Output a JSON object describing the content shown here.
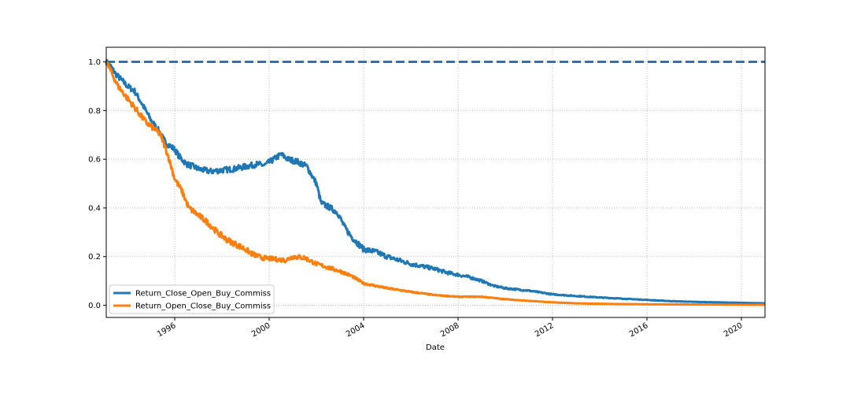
{
  "chart_data": {
    "type": "line",
    "title": "",
    "xlabel": "Date",
    "ylabel": "",
    "xlim": [
      1993.1,
      2021.0
    ],
    "ylim": [
      -0.05,
      1.06
    ],
    "x_ticks": [
      {
        "value": 1996,
        "label": "1996"
      },
      {
        "value": 2000,
        "label": "2000"
      },
      {
        "value": 2004,
        "label": "2004"
      },
      {
        "value": 2008,
        "label": "2008"
      },
      {
        "value": 2012,
        "label": "2012"
      },
      {
        "value": 2016,
        "label": "2016"
      },
      {
        "value": 2020,
        "label": "2020"
      }
    ],
    "y_ticks": [
      {
        "value": 0.0,
        "label": "0.0"
      },
      {
        "value": 0.2,
        "label": "0.2"
      },
      {
        "value": 0.4,
        "label": "0.4"
      },
      {
        "value": 0.6,
        "label": "0.6"
      },
      {
        "value": 0.8,
        "label": "0.8"
      },
      {
        "value": 1.0,
        "label": "1.0"
      }
    ],
    "grid": true,
    "grid_style": "dotted",
    "legend_position": "lower-left",
    "reference_line": {
      "y": 1.0,
      "style": "dashed",
      "color": "#1f77b4"
    },
    "series": [
      {
        "name": "Return_Close_Open_Buy_Commiss",
        "color": "#1f77b4",
        "points": [
          [
            1993.1,
            1.0
          ],
          [
            1993.3,
            0.98
          ],
          [
            1993.5,
            0.95
          ],
          [
            1993.8,
            0.92
          ],
          [
            1994.0,
            0.9
          ],
          [
            1994.3,
            0.88
          ],
          [
            1994.6,
            0.83
          ],
          [
            1995.0,
            0.76
          ],
          [
            1995.3,
            0.72
          ],
          [
            1995.6,
            0.67
          ],
          [
            1996.0,
            0.64
          ],
          [
            1996.2,
            0.61
          ],
          [
            1996.5,
            0.58
          ],
          [
            1996.8,
            0.57
          ],
          [
            1997.0,
            0.56
          ],
          [
            1997.5,
            0.55
          ],
          [
            1998.0,
            0.555
          ],
          [
            1998.5,
            0.56
          ],
          [
            1999.0,
            0.57
          ],
          [
            1999.5,
            0.58
          ],
          [
            1999.8,
            0.575
          ],
          [
            2000.2,
            0.6
          ],
          [
            2000.5,
            0.62
          ],
          [
            2000.8,
            0.6
          ],
          [
            2001.2,
            0.59
          ],
          [
            2001.6,
            0.57
          ],
          [
            2002.0,
            0.5
          ],
          [
            2002.2,
            0.42
          ],
          [
            2002.6,
            0.4
          ],
          [
            2002.9,
            0.38
          ],
          [
            2003.2,
            0.32
          ],
          [
            2003.5,
            0.28
          ],
          [
            2003.8,
            0.25
          ],
          [
            2004.0,
            0.23
          ],
          [
            2004.5,
            0.22
          ],
          [
            2005.0,
            0.2
          ],
          [
            2005.5,
            0.185
          ],
          [
            2006.0,
            0.17
          ],
          [
            2006.5,
            0.16
          ],
          [
            2007.0,
            0.15
          ],
          [
            2007.5,
            0.135
          ],
          [
            2008.0,
            0.125
          ],
          [
            2008.5,
            0.115
          ],
          [
            2009.0,
            0.1
          ],
          [
            2009.5,
            0.08
          ],
          [
            2010.0,
            0.07
          ],
          [
            2011.0,
            0.06
          ],
          [
            2012.0,
            0.045
          ],
          [
            2013.0,
            0.038
          ],
          [
            2014.0,
            0.032
          ],
          [
            2015.0,
            0.027
          ],
          [
            2016.0,
            0.022
          ],
          [
            2017.0,
            0.017
          ],
          [
            2018.0,
            0.014
          ],
          [
            2019.0,
            0.012
          ],
          [
            2020.0,
            0.01
          ],
          [
            2021.0,
            0.008
          ]
        ]
      },
      {
        "name": "Return_Open_Close_Buy_Commiss",
        "color": "#ff7f0e",
        "points": [
          [
            1993.1,
            1.0
          ],
          [
            1993.3,
            0.96
          ],
          [
            1993.6,
            0.9
          ],
          [
            1994.0,
            0.85
          ],
          [
            1994.4,
            0.8
          ],
          [
            1994.8,
            0.75
          ],
          [
            1995.2,
            0.72
          ],
          [
            1995.4,
            0.7
          ],
          [
            1995.7,
            0.62
          ],
          [
            1996.0,
            0.52
          ],
          [
            1996.3,
            0.47
          ],
          [
            1996.6,
            0.4
          ],
          [
            1997.0,
            0.37
          ],
          [
            1997.4,
            0.34
          ],
          [
            1997.8,
            0.3
          ],
          [
            1998.2,
            0.27
          ],
          [
            1998.6,
            0.25
          ],
          [
            1998.9,
            0.235
          ],
          [
            1999.3,
            0.21
          ],
          [
            1999.7,
            0.195
          ],
          [
            2000.2,
            0.19
          ],
          [
            2000.7,
            0.185
          ],
          [
            2001.0,
            0.2
          ],
          [
            2001.5,
            0.195
          ],
          [
            2002.0,
            0.17
          ],
          [
            2002.5,
            0.155
          ],
          [
            2003.0,
            0.14
          ],
          [
            2003.5,
            0.12
          ],
          [
            2004.0,
            0.09
          ],
          [
            2004.5,
            0.08
          ],
          [
            2005.0,
            0.07
          ],
          [
            2006.0,
            0.055
          ],
          [
            2007.0,
            0.042
          ],
          [
            2008.0,
            0.035
          ],
          [
            2009.0,
            0.035
          ],
          [
            2010.0,
            0.025
          ],
          [
            2011.0,
            0.018
          ],
          [
            2012.0,
            0.012
          ],
          [
            2013.0,
            0.008
          ],
          [
            2014.0,
            0.006
          ],
          [
            2016.0,
            0.004
          ],
          [
            2018.0,
            0.003
          ],
          [
            2020.0,
            0.002
          ],
          [
            2021.0,
            0.002
          ]
        ]
      }
    ]
  }
}
